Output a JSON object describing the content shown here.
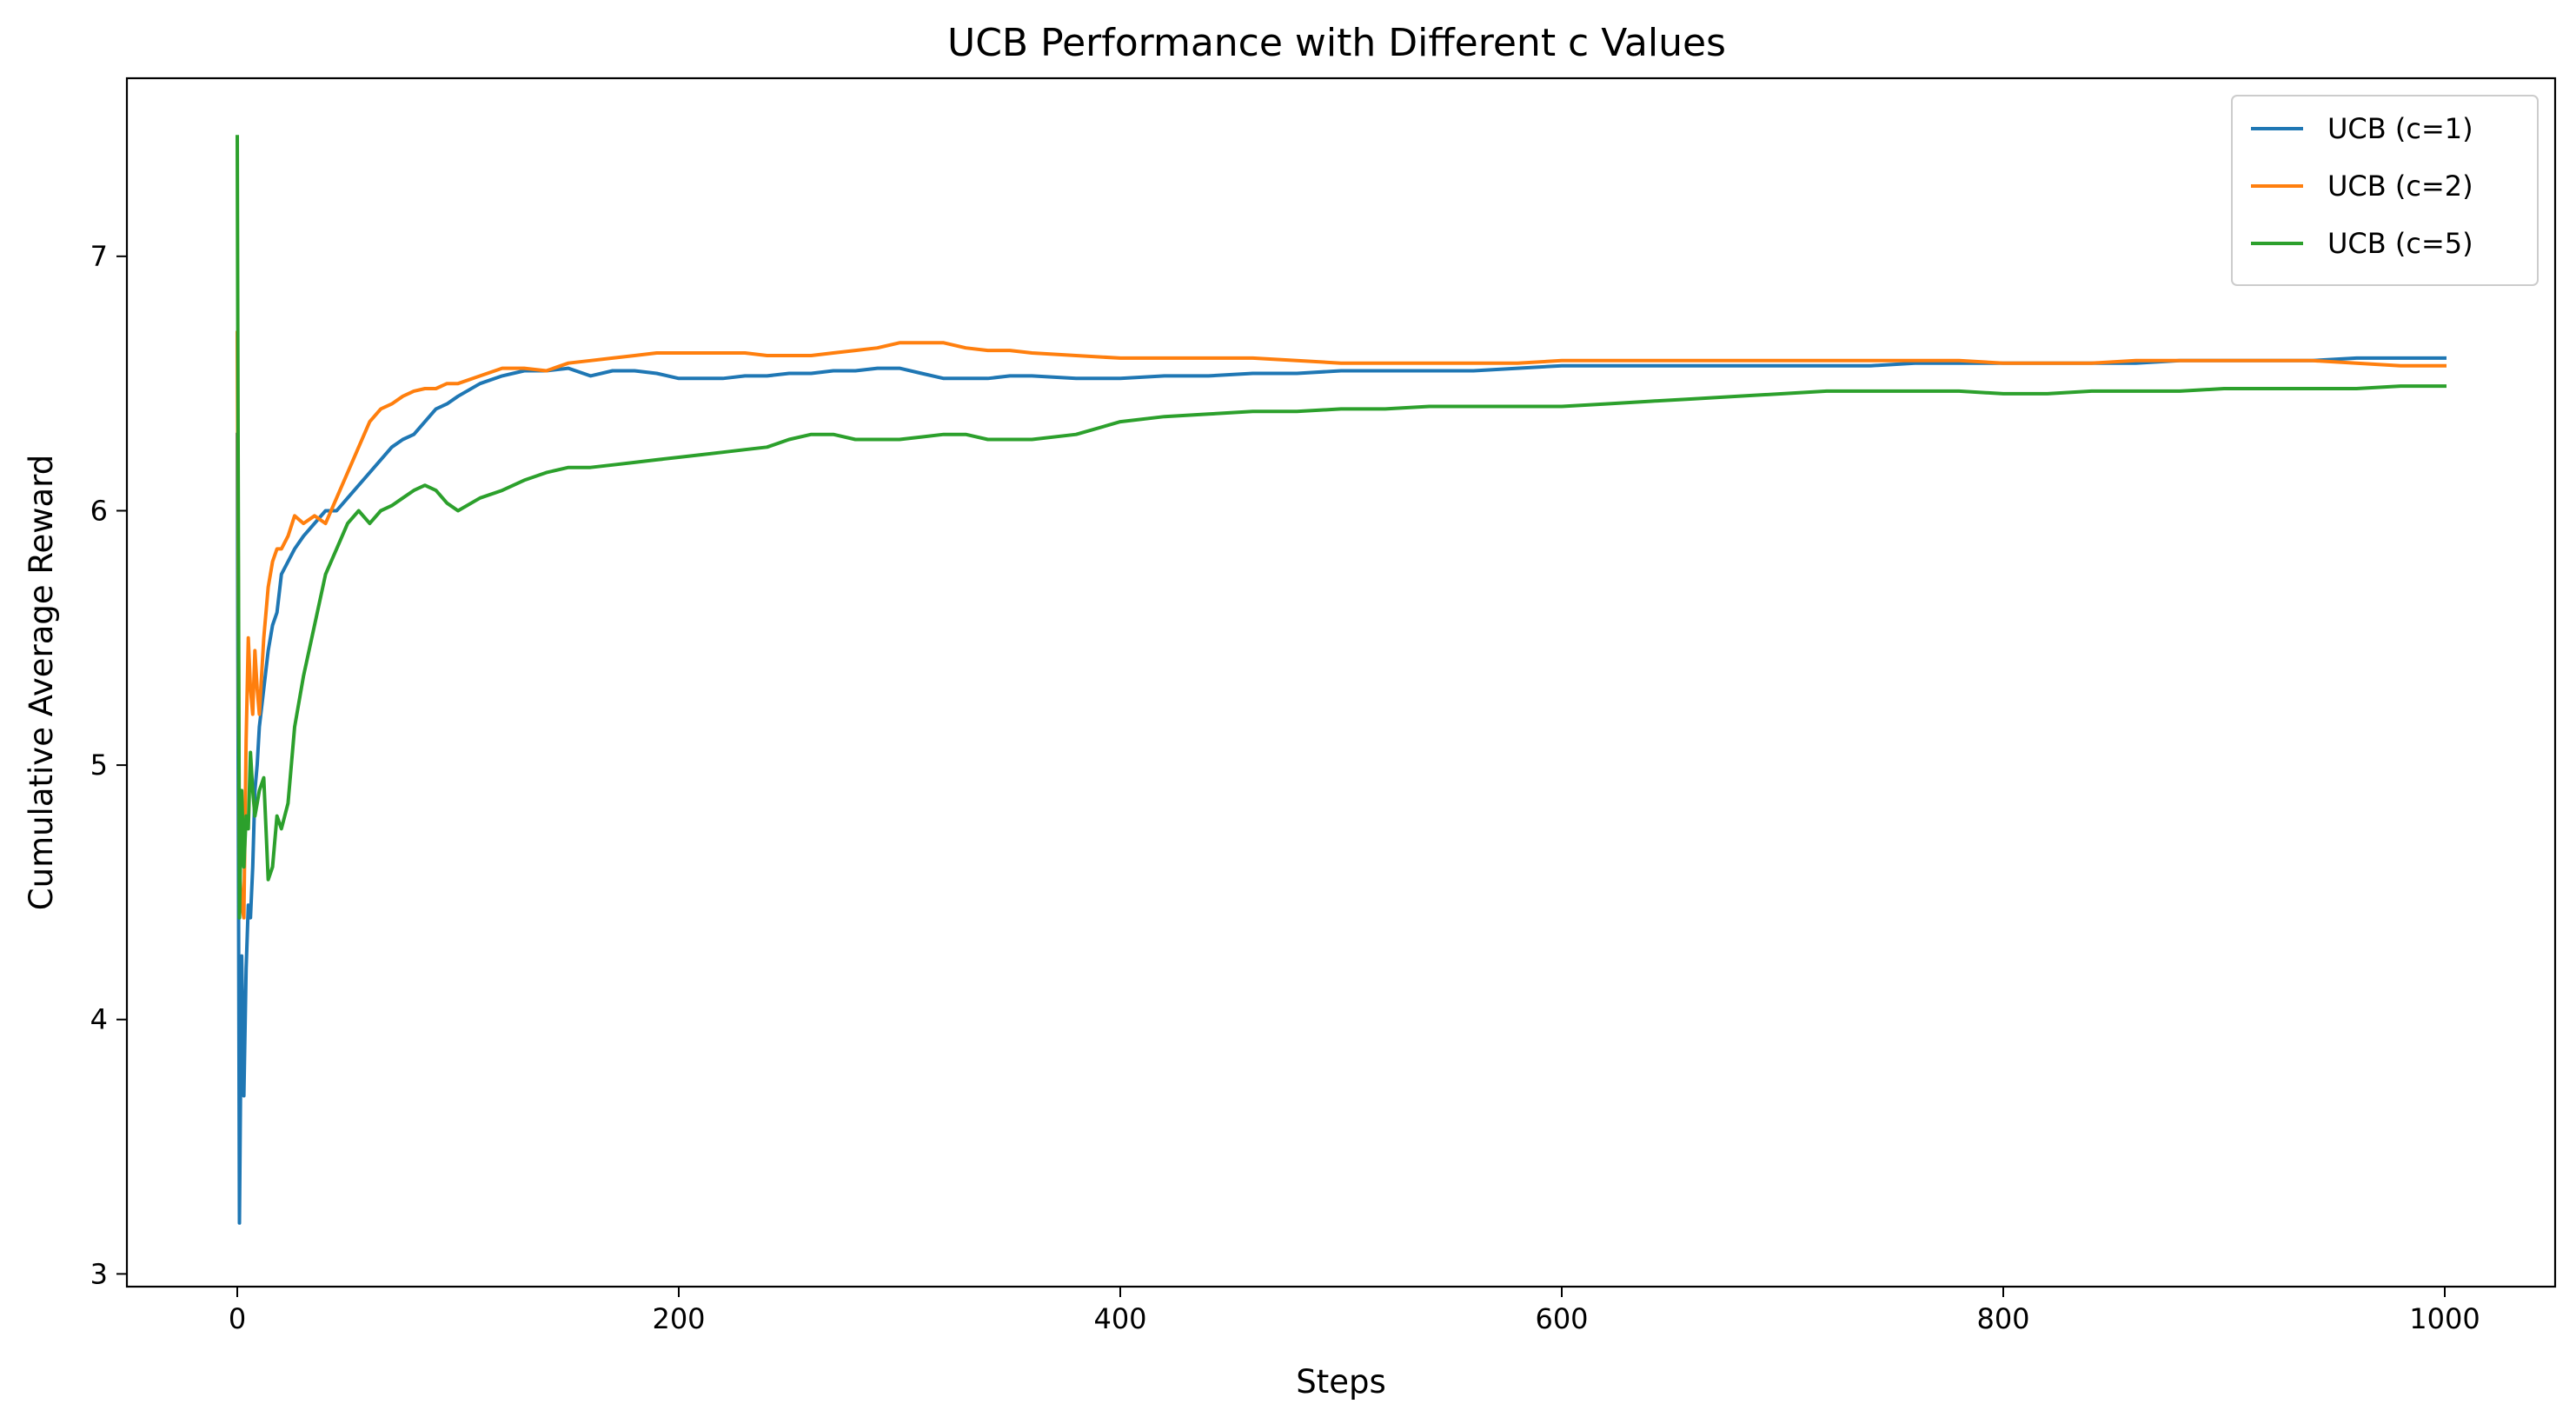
{
  "chart_data": {
    "type": "line",
    "title": "UCB Performance with Different c Values",
    "xlabel": "Steps",
    "ylabel": "Cumulative Average Reward",
    "xlim": [
      -50,
      1050
    ],
    "ylim": [
      2.95,
      7.7
    ],
    "xticks": [
      0,
      200,
      400,
      600,
      800,
      1000
    ],
    "yticks": [
      3,
      4,
      5,
      6,
      7
    ],
    "grid": false,
    "legend_position": "top-right",
    "series": [
      {
        "name": "UCB (c=1)",
        "color": "#1f77b4",
        "x": [
          0,
          1,
          2,
          3,
          4,
          5,
          6,
          7,
          8,
          9,
          10,
          12,
          14,
          16,
          18,
          20,
          23,
          26,
          30,
          35,
          40,
          45,
          50,
          55,
          60,
          65,
          70,
          75,
          80,
          85,
          90,
          95,
          100,
          110,
          120,
          130,
          140,
          150,
          160,
          170,
          180,
          190,
          200,
          210,
          220,
          230,
          240,
          250,
          260,
          270,
          280,
          290,
          300,
          310,
          320,
          330,
          340,
          350,
          360,
          380,
          400,
          420,
          440,
          460,
          480,
          500,
          520,
          540,
          560,
          580,
          600,
          620,
          640,
          660,
          680,
          700,
          720,
          740,
          760,
          780,
          800,
          820,
          840,
          860,
          880,
          900,
          920,
          940,
          960,
          980,
          1000
        ],
        "y": [
          6.3,
          3.2,
          4.25,
          3.7,
          4.2,
          4.45,
          4.4,
          4.6,
          4.9,
          5.0,
          5.15,
          5.3,
          5.45,
          5.55,
          5.6,
          5.75,
          5.8,
          5.85,
          5.9,
          5.95,
          6.0,
          6.0,
          6.05,
          6.1,
          6.15,
          6.2,
          6.25,
          6.28,
          6.3,
          6.35,
          6.4,
          6.42,
          6.45,
          6.5,
          6.53,
          6.55,
          6.55,
          6.56,
          6.53,
          6.55,
          6.55,
          6.54,
          6.52,
          6.52,
          6.52,
          6.53,
          6.53,
          6.54,
          6.54,
          6.55,
          6.55,
          6.56,
          6.56,
          6.54,
          6.52,
          6.52,
          6.52,
          6.53,
          6.53,
          6.52,
          6.52,
          6.53,
          6.53,
          6.54,
          6.54,
          6.55,
          6.55,
          6.55,
          6.55,
          6.56,
          6.57,
          6.57,
          6.57,
          6.57,
          6.57,
          6.57,
          6.57,
          6.57,
          6.58,
          6.58,
          6.58,
          6.58,
          6.58,
          6.58,
          6.59,
          6.59,
          6.59,
          6.59,
          6.6,
          6.6,
          6.6
        ]
      },
      {
        "name": "UCB (c=2)",
        "color": "#ff7f0e",
        "x": [
          0,
          1,
          2,
          3,
          4,
          5,
          6,
          7,
          8,
          9,
          10,
          12,
          14,
          16,
          18,
          20,
          23,
          26,
          30,
          35,
          40,
          45,
          50,
          55,
          60,
          65,
          70,
          75,
          80,
          85,
          90,
          95,
          100,
          110,
          120,
          130,
          140,
          150,
          160,
          170,
          180,
          190,
          200,
          210,
          220,
          230,
          240,
          250,
          260,
          270,
          280,
          290,
          300,
          310,
          320,
          330,
          340,
          350,
          360,
          380,
          400,
          420,
          440,
          460,
          480,
          500,
          520,
          540,
          560,
          580,
          600,
          620,
          640,
          660,
          680,
          700,
          720,
          740,
          760,
          780,
          800,
          820,
          840,
          860,
          880,
          900,
          920,
          940,
          960,
          980,
          1000
        ],
        "y": [
          6.7,
          4.6,
          4.45,
          4.4,
          5.1,
          5.5,
          5.3,
          5.2,
          5.45,
          5.3,
          5.2,
          5.5,
          5.7,
          5.8,
          5.85,
          5.85,
          5.9,
          5.98,
          5.95,
          5.98,
          5.95,
          6.05,
          6.15,
          6.25,
          6.35,
          6.4,
          6.42,
          6.45,
          6.47,
          6.48,
          6.48,
          6.5,
          6.5,
          6.53,
          6.56,
          6.56,
          6.55,
          6.58,
          6.59,
          6.6,
          6.61,
          6.62,
          6.62,
          6.62,
          6.62,
          6.62,
          6.61,
          6.61,
          6.61,
          6.62,
          6.63,
          6.64,
          6.66,
          6.66,
          6.66,
          6.64,
          6.63,
          6.63,
          6.62,
          6.61,
          6.6,
          6.6,
          6.6,
          6.6,
          6.59,
          6.58,
          6.58,
          6.58,
          6.58,
          6.58,
          6.59,
          6.59,
          6.59,
          6.59,
          6.59,
          6.59,
          6.59,
          6.59,
          6.59,
          6.59,
          6.58,
          6.58,
          6.58,
          6.59,
          6.59,
          6.59,
          6.59,
          6.59,
          6.58,
          6.57,
          6.57
        ]
      },
      {
        "name": "UCB (c=5)",
        "color": "#2ca02c",
        "x": [
          0,
          1,
          2,
          3,
          4,
          5,
          6,
          7,
          8,
          9,
          10,
          12,
          14,
          16,
          18,
          20,
          23,
          26,
          30,
          35,
          40,
          45,
          50,
          55,
          60,
          65,
          70,
          75,
          80,
          85,
          90,
          95,
          100,
          110,
          120,
          130,
          140,
          150,
          160,
          170,
          180,
          190,
          200,
          210,
          220,
          230,
          240,
          250,
          260,
          270,
          280,
          290,
          300,
          310,
          320,
          330,
          340,
          350,
          360,
          380,
          400,
          420,
          440,
          460,
          480,
          500,
          520,
          540,
          560,
          580,
          600,
          620,
          640,
          660,
          680,
          700,
          720,
          740,
          760,
          780,
          800,
          820,
          840,
          860,
          880,
          900,
          920,
          940,
          960,
          980,
          1000
        ],
        "y": [
          7.47,
          4.4,
          4.9,
          4.6,
          4.8,
          4.75,
          5.05,
          4.9,
          4.8,
          4.85,
          4.9,
          4.95,
          4.55,
          4.6,
          4.8,
          4.75,
          4.85,
          5.15,
          5.35,
          5.55,
          5.75,
          5.85,
          5.95,
          6.0,
          5.95,
          6.0,
          6.02,
          6.05,
          6.08,
          6.1,
          6.08,
          6.03,
          6.0,
          6.05,
          6.08,
          6.12,
          6.15,
          6.17,
          6.17,
          6.18,
          6.19,
          6.2,
          6.21,
          6.22,
          6.23,
          6.24,
          6.25,
          6.28,
          6.3,
          6.3,
          6.28,
          6.28,
          6.28,
          6.29,
          6.3,
          6.3,
          6.28,
          6.28,
          6.28,
          6.3,
          6.35,
          6.37,
          6.38,
          6.39,
          6.39,
          6.4,
          6.4,
          6.41,
          6.41,
          6.41,
          6.41,
          6.42,
          6.43,
          6.44,
          6.45,
          6.46,
          6.47,
          6.47,
          6.47,
          6.47,
          6.46,
          6.46,
          6.47,
          6.47,
          6.47,
          6.48,
          6.48,
          6.48,
          6.48,
          6.49,
          6.49
        ]
      }
    ]
  }
}
